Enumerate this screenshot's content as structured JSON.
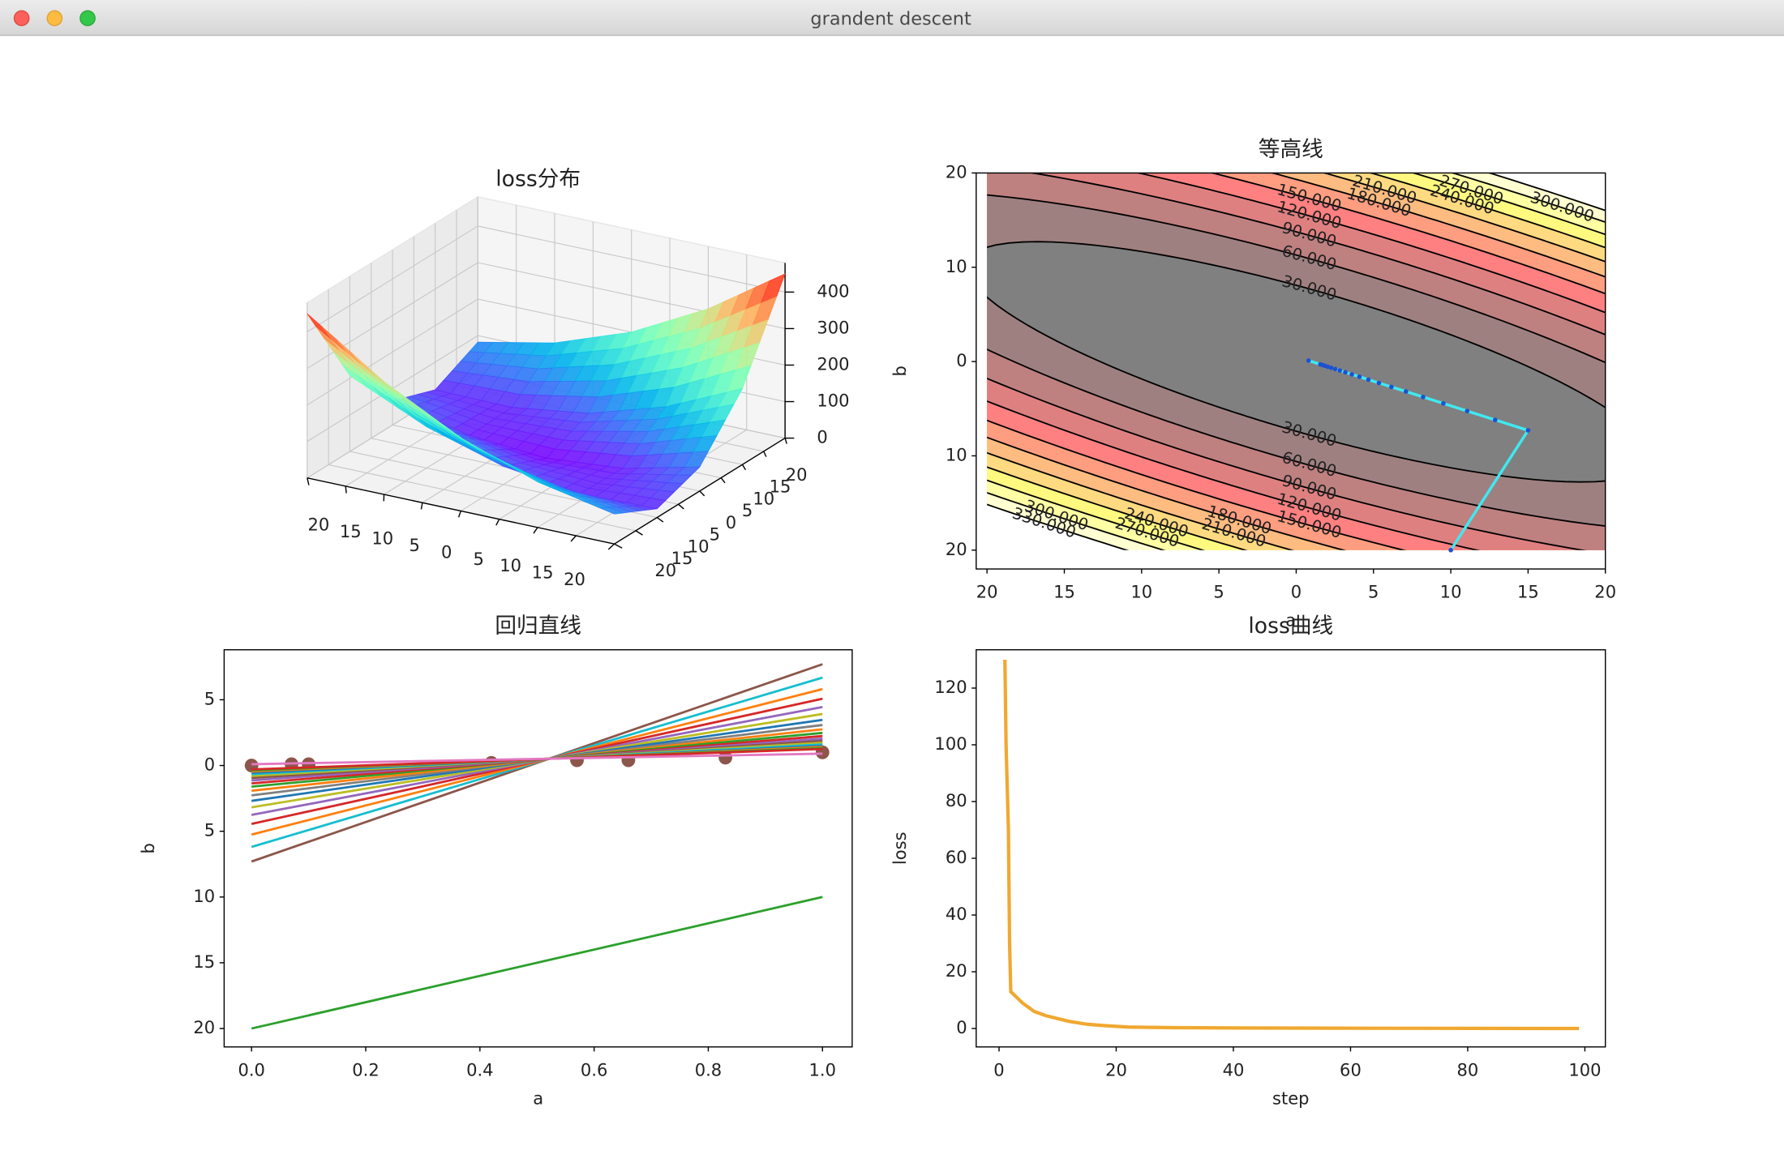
{
  "window": {
    "title": "grandent descent"
  },
  "chart_data": [
    {
      "type": "surface3d",
      "title": "loss分布",
      "x": [
        -20,
        -10,
        0,
        10,
        20
      ],
      "y": [
        -20,
        -10,
        0,
        10,
        20
      ],
      "z": [
        [
          450,
          309,
          200,
          125,
          82
        ],
        [
          208,
          113,
          50,
          21,
          24
        ],
        [
          66,
          17,
          0,
          17,
          66
        ],
        [
          24,
          21,
          50,
          113,
          208
        ],
        [
          82,
          125,
          200,
          309,
          450
        ]
      ],
      "colormap": "rainbow",
      "xlim": [
        -20,
        20
      ],
      "ylim": [
        -20,
        20
      ],
      "zlim": [
        0,
        480
      ],
      "xticks": [
        {
          "value": -20,
          "label": "20"
        },
        {
          "value": -15,
          "label": "15"
        },
        {
          "value": -10,
          "label": "10"
        },
        {
          "value": -5,
          "label": "5"
        },
        0,
        5,
        10,
        15,
        20
      ],
      "yticks": [
        {
          "value": -20,
          "label": "20"
        },
        {
          "value": -15,
          "label": "15"
        },
        {
          "value": -10,
          "label": "10"
        },
        {
          "value": -5,
          "label": "5"
        },
        0,
        5,
        10,
        15,
        20
      ],
      "zticks": [
        0,
        100,
        200,
        300,
        400
      ]
    },
    {
      "type": "contour",
      "title": "等高线",
      "xlabel": "a",
      "ylabel": "b",
      "xlim": [
        -20.7,
        20
      ],
      "ylim": [
        -22,
        20
      ],
      "xticks": [
        {
          "value": -20,
          "label": "20"
        },
        {
          "value": -15,
          "label": "15"
        },
        {
          "value": -10,
          "label": "10"
        },
        {
          "value": -5,
          "label": "5"
        },
        0,
        5,
        10,
        15,
        20
      ],
      "yticks": [
        {
          "value": -20,
          "label": "20"
        },
        {
          "value": -10,
          "label": "10"
        },
        0,
        10,
        20
      ],
      "levels": [
        30,
        60,
        90,
        120,
        150,
        180,
        210,
        240,
        270,
        300,
        330
      ],
      "level_labels": [
        "30.000",
        "60.000",
        "90.000",
        "120.000",
        "150.000",
        "180.000",
        "210.000",
        "240.000",
        "270.000",
        "300.000",
        "330.000"
      ],
      "colormap": "hot",
      "alpha": 0.5,
      "path": {
        "color": "#40e8f0",
        "marker_color": "#1f50d0",
        "x": [
          10,
          15,
          12.87,
          11.06,
          9.52,
          8.21,
          7.1,
          6.16,
          5.35,
          4.67,
          4.09,
          3.6,
          3.18,
          2.82,
          2.52,
          2.26,
          2.04,
          1.86,
          1.7,
          1.56,
          0.8
        ],
        "y": [
          -20,
          -7.3,
          -6.19,
          -5.25,
          -4.44,
          -3.76,
          -3.18,
          -2.69,
          -2.27,
          -1.92,
          -1.61,
          -1.36,
          -1.14,
          -0.95,
          -0.79,
          -0.66,
          -0.55,
          -0.45,
          -0.37,
          -0.3,
          0.1
        ]
      }
    },
    {
      "type": "regression",
      "title": "回归直线",
      "xlabel": "a",
      "ylabel": "b",
      "xlim": [
        -0.048,
        1.052
      ],
      "ylim": [
        -21.4,
        8.8
      ],
      "xticks": [
        {
          "value": 0,
          "label": "0.0"
        },
        0.2,
        0.4,
        0.6,
        0.8,
        {
          "value": 1,
          "label": "1.0"
        }
      ],
      "yticks": [
        {
          "value": -20,
          "label": "20"
        },
        {
          "value": -15,
          "label": "15"
        },
        {
          "value": -10,
          "label": "10"
        },
        {
          "value": -5,
          "label": "5"
        },
        0,
        5
      ],
      "points": {
        "color": "#8c564b",
        "x": [
          0,
          0.07,
          0.1,
          0.42,
          0.57,
          0.66,
          0.83,
          1.0
        ],
        "y": [
          0,
          0.1,
          0.1,
          0.2,
          0.4,
          0.4,
          0.6,
          1.0
        ]
      },
      "lines": {
        "slopes": [
          10,
          15,
          12.87,
          11.06,
          9.52,
          8.21,
          7.1,
          6.16,
          5.35,
          4.67,
          4.09,
          3.6,
          3.18,
          2.82,
          2.52,
          2.26,
          2.04,
          1.86,
          1.7,
          1.56,
          0.8
        ],
        "intercepts": [
          -20,
          -7.3,
          -6.19,
          -5.25,
          -4.44,
          -3.76,
          -3.18,
          -2.69,
          -2.27,
          -1.92,
          -1.61,
          -1.36,
          -1.14,
          -0.95,
          -0.79,
          -0.66,
          -0.55,
          -0.45,
          -0.37,
          -0.3,
          0.1
        ],
        "colors": [
          "#2ca02c",
          "#8c564b",
          "#17becf",
          "#ff7f0e",
          "#d62728",
          "#9467bd",
          "#bcbd22",
          "#1f77b4",
          "#7f7f7f",
          "#ff7f0e",
          "#2ca02c",
          "#d62728",
          "#9467bd",
          "#8c564b",
          "#bcbd22",
          "#17becf",
          "#1f77b4",
          "#ff7f0e",
          "#2ca02c",
          "#d62728",
          "#e377c2"
        ]
      }
    },
    {
      "type": "line",
      "title": "loss曲线",
      "xlabel": "step",
      "ylabel": "loss",
      "color": "#f0a830",
      "xlim": [
        -3.9,
        103.5
      ],
      "ylim": [
        -6.5,
        133.5
      ],
      "xticks": [
        0,
        20,
        40,
        60,
        80,
        100
      ],
      "yticks": [
        0,
        20,
        40,
        60,
        80,
        100,
        120
      ],
      "x": [
        1,
        1.2,
        1.6,
        1.8,
        2,
        3,
        4,
        5,
        6,
        8,
        10,
        12,
        15,
        18,
        22,
        30,
        40,
        60,
        80,
        99
      ],
      "values": [
        130,
        100,
        70,
        30,
        13,
        11,
        9,
        7.5,
        6,
        4.5,
        3.5,
        2.5,
        1.5,
        1,
        0.5,
        0.3,
        0.2,
        0.1,
        0.05,
        0
      ]
    }
  ]
}
